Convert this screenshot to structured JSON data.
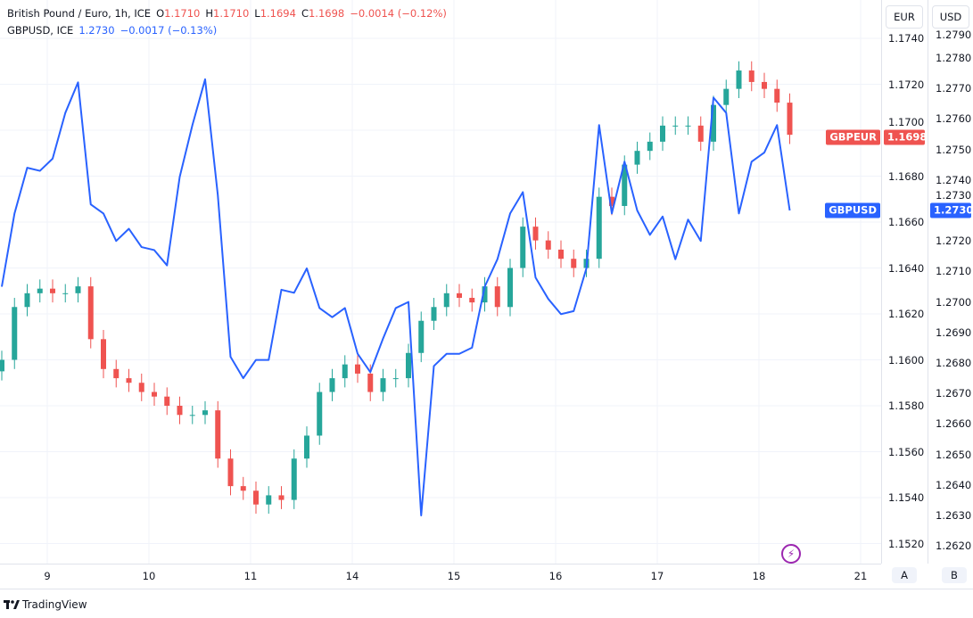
{
  "legend": {
    "main_title": "British Pound / Euro, 1h, ICE",
    "o_label": "O",
    "o_value": "1.1710",
    "h_label": "H",
    "h_value": "1.1710",
    "l_label": "L",
    "l_value": "1.1694",
    "c_label": "C",
    "c_value": "1.1698",
    "change": "−0.0014 (−0.12%)",
    "compare_title": "GBPUSD, ICE",
    "compare_value": "1.2730",
    "compare_change": "−0.0017 (−0.13%)"
  },
  "scale_buttons": {
    "eur": "EUR",
    "usd": "USD",
    "a": "A",
    "b": "B"
  },
  "badges": {
    "gbpeur_label": "GBPEUR",
    "gbpeur_value": "1.1698",
    "gbpusd_label": "GBPUSD",
    "gbpusd_value": "1.2730"
  },
  "footer": {
    "brand": "TradingView"
  },
  "colors": {
    "up": "#26a69a",
    "down": "#ef5350",
    "compare_line": "#2962ff",
    "alert_icon": "#9c27b0"
  },
  "icons": {
    "alert": "lightning-icon",
    "logo": "tradingview-logo"
  },
  "chart_data": {
    "type": "candlestick+line",
    "x_tick_labels": [
      "9",
      "10",
      "11",
      "14",
      "15",
      "16",
      "17",
      "18",
      "21"
    ],
    "start": "8 13:00",
    "interval_hours": 3,
    "grid": true,
    "left_axis_ticks": [
      "1.1740",
      "1.1720",
      "1.1700",
      "1.1680",
      "1.1660",
      "1.1640",
      "1.1620",
      "1.1600",
      "1.1580",
      "1.1560",
      "1.1540",
      "1.1520"
    ],
    "right_axis_ticks": [
      "1.2790",
      "1.2780",
      "1.2770",
      "1.2760",
      "1.2750",
      "1.2740",
      "1.2730",
      "1.2720",
      "1.2710",
      "1.2700",
      "1.2690",
      "1.2680",
      "1.2670",
      "1.2660",
      "1.2650",
      "1.2640",
      "1.2630",
      "1.2620"
    ],
    "series": [
      {
        "name": "GBPEUR",
        "axis": "EUR",
        "style": "candles",
        "first_open": 1.1595,
        "closes": [
          1.16,
          1.1623,
          1.1629,
          1.1631,
          1.1629,
          1.1629,
          1.1632,
          1.1609,
          1.1596,
          1.1592,
          1.159,
          1.1586,
          1.1584,
          1.158,
          1.1576,
          1.1576,
          1.1578,
          1.1557,
          1.1545,
          1.1543,
          1.1537,
          1.1541,
          1.1539,
          1.1557,
          1.1567,
          1.1586,
          1.1592,
          1.1598,
          1.1594,
          1.1586,
          1.1592,
          1.1592,
          1.1603,
          1.1617,
          1.1623,
          1.1629,
          1.1627,
          1.1625,
          1.1632,
          1.1623,
          1.164,
          1.1658,
          1.1652,
          1.1648,
          1.1644,
          1.164,
          1.1644,
          1.1671,
          1.1667,
          1.1685,
          1.1691,
          1.1695,
          1.1702,
          1.1702,
          1.1702,
          1.1695,
          1.1711,
          1.1718,
          1.1726,
          1.1721,
          1.1718,
          1.1712,
          1.1698
        ]
      },
      {
        "name": "GBPUSD",
        "axis": "USD",
        "style": "line",
        "values": [
          1.2705,
          1.2729,
          1.2744,
          1.2743,
          1.2747,
          1.2762,
          1.2772,
          1.2732,
          1.2729,
          1.272,
          1.2724,
          1.2718,
          1.2717,
          1.2712,
          1.2741,
          1.2758,
          1.2773,
          1.2735,
          1.2682,
          1.2675,
          1.2681,
          1.2681,
          1.2704,
          1.2703,
          1.2711,
          1.2698,
          1.2695,
          1.2698,
          1.2683,
          1.2677,
          1.2688,
          1.2698,
          1.27,
          1.263,
          1.2679,
          1.2683,
          1.2683,
          1.2685,
          1.2705,
          1.2714,
          1.2729,
          1.2736,
          1.2708,
          1.2701,
          1.2696,
          1.2697,
          1.2711,
          1.2758,
          1.2729,
          1.2746,
          1.273,
          1.2722,
          1.2728,
          1.2714,
          1.2727,
          1.272,
          1.2767,
          1.2762,
          1.2729,
          1.2746,
          1.2749,
          1.2758,
          1.273
        ]
      }
    ]
  }
}
